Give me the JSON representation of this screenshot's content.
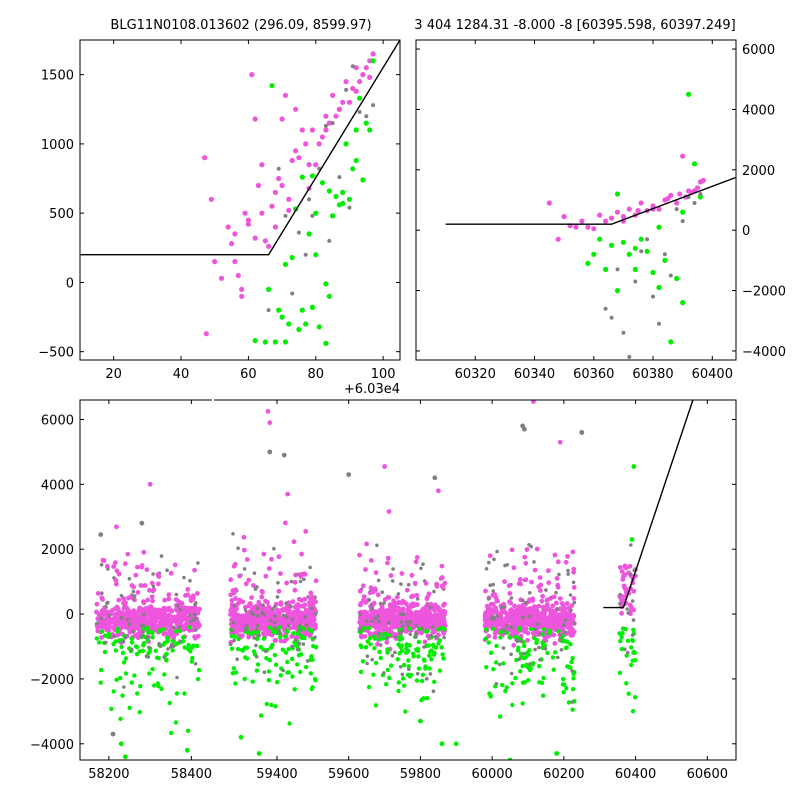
{
  "colors": {
    "magenta": "#ee55dd",
    "green": "#00ee00",
    "gray": "#808080",
    "line": "#000000"
  },
  "chart_data": [
    {
      "type": "scatter",
      "title": "BLG11N0108.013602 (296.09, 8599.97)",
      "x_offset_label": "+6.03e4",
      "xlim": [
        10,
        105
      ],
      "ylim": [
        -560,
        1750
      ],
      "xticks": [
        20,
        40,
        60,
        80,
        100
      ],
      "yticks": [
        -500,
        0,
        500,
        1000,
        1500
      ],
      "grid": false,
      "model_line": {
        "x": [
          10,
          66,
          105
        ],
        "y": [
          200,
          200,
          1750
        ]
      },
      "series": [
        {
          "color": "magenta",
          "x": [
            47,
            47.5,
            49,
            50,
            52,
            54,
            55,
            56,
            57,
            58,
            59,
            60,
            61,
            62,
            63,
            64,
            65,
            66,
            67,
            68,
            69,
            70,
            71,
            72,
            73,
            74,
            75,
            76,
            77,
            78,
            79,
            80,
            81,
            82,
            83,
            84,
            85,
            86,
            87,
            88,
            89,
            90,
            91,
            92,
            93,
            94,
            95,
            96,
            97,
            60,
            62,
            68,
            72,
            56,
            58,
            64,
            70,
            74,
            78,
            83,
            87,
            92,
            96
          ],
          "y": [
            900,
            -370,
            600,
            150,
            30,
            400,
            280,
            350,
            50,
            -100,
            500,
            420,
            1500,
            1180,
            700,
            850,
            300,
            260,
            550,
            650,
            750,
            1180,
            1350,
            520,
            880,
            1250,
            900,
            1100,
            1000,
            680,
            1100,
            850,
            1000,
            1050,
            1200,
            1150,
            1350,
            1200,
            1250,
            1300,
            1450,
            1300,
            1400,
            1550,
            1450,
            1500,
            1550,
            1600,
            1650,
            450,
            320,
            400,
            600,
            150,
            -50,
            500,
            700,
            950,
            850,
            1100,
            1250,
            1380,
            1480
          ]
        },
        {
          "color": "green",
          "x": [
            62,
            65,
            67,
            68,
            69,
            70,
            71,
            72,
            73,
            74,
            75,
            76,
            77,
            78,
            79,
            80,
            81,
            82,
            83,
            84,
            85,
            86,
            87,
            88,
            89,
            90,
            91,
            92,
            93,
            94,
            95,
            96,
            97,
            76,
            80,
            84,
            88,
            92,
            66,
            71,
            79,
            83
          ],
          "y": [
            -420,
            -430,
            1420,
            -430,
            -200,
            -250,
            -430,
            -300,
            180,
            530,
            -340,
            760,
            -300,
            350,
            770,
            500,
            -320,
            720,
            -440,
            660,
            480,
            620,
            560,
            570,
            1000,
            600,
            820,
            1100,
            1330,
            740,
            1150,
            1100,
            1600,
            -200,
            200,
            -100,
            650,
            880,
            -50,
            130,
            -180,
            -10
          ]
        },
        {
          "color": "gray",
          "x": [
            66,
            69,
            71,
            73,
            75,
            77,
            79,
            81,
            83,
            85,
            87,
            89,
            91,
            93,
            95,
            97,
            78,
            84,
            90
          ],
          "y": [
            -200,
            820,
            480,
            -80,
            360,
            200,
            480,
            820,
            1130,
            1150,
            760,
            1390,
            1560,
            1230,
            1200,
            1280,
            600,
            300,
            540
          ]
        }
      ]
    },
    {
      "type": "scatter",
      "title": "3 404 1284.31 -8.000 -8 [60395.598, 60397.249]",
      "xlim": [
        60300,
        60408
      ],
      "ylim": [
        -4300,
        6300
      ],
      "xticks": [
        60320,
        60340,
        60360,
        60380,
        60400
      ],
      "yticks": [
        -4000,
        -2000,
        0,
        2000,
        4000,
        6000
      ],
      "yaxis_side": "right",
      "grid": false,
      "model_line": {
        "x": [
          60310,
          60366,
          60408
        ],
        "y": [
          200,
          200,
          1750
        ]
      },
      "series": [
        {
          "color": "magenta",
          "x": [
            60345,
            60348,
            60350,
            60352,
            60354,
            60356,
            60358,
            60360,
            60362,
            60364,
            60366,
            60368,
            60370,
            60372,
            60374,
            60376,
            60378,
            60380,
            60382,
            60384,
            60386,
            60388,
            60390,
            60392,
            60394,
            60396,
            60389,
            60391,
            60393,
            60395,
            60397,
            60370,
            60375,
            60380,
            60385
          ],
          "y": [
            900,
            -300,
            450,
            150,
            100,
            300,
            100,
            50,
            500,
            300,
            400,
            600,
            450,
            700,
            500,
            900,
            650,
            800,
            700,
            1000,
            1150,
            900,
            2450,
            1300,
            1300,
            1600,
            1200,
            1100,
            1250,
            1400,
            1650,
            300,
            650,
            700,
            1050
          ]
        },
        {
          "color": "green",
          "x": [
            60358,
            60360,
            60362,
            60364,
            60366,
            60368,
            60370,
            60372,
            60374,
            60376,
            60378,
            60380,
            60382,
            60384,
            60386,
            60388,
            60390,
            60392,
            60394,
            60396,
            60368,
            60374,
            60382,
            60390
          ],
          "y": [
            -1100,
            -800,
            -300,
            -1300,
            -500,
            1200,
            -400,
            -800,
            -1300,
            -300,
            -700,
            -1400,
            100,
            -1000,
            -3700,
            -1600,
            -2400,
            4500,
            2200,
            1100,
            -2000,
            -600,
            -1900,
            600
          ]
        },
        {
          "color": "gray",
          "x": [
            60364,
            60366,
            60368,
            60370,
            60372,
            60374,
            60376,
            60378,
            60380,
            60382,
            60384,
            60386,
            60388,
            60390,
            60392,
            60394,
            60396
          ],
          "y": [
            -2600,
            -2900,
            -1300,
            -3400,
            -4200,
            -1700,
            -700,
            -300,
            -2200,
            -3100,
            -800,
            -1500,
            700,
            300,
            1100,
            900,
            1200
          ]
        }
      ]
    },
    {
      "type": "scatter",
      "title": "",
      "xlim": [
        58130,
        60680
      ],
      "ylim": [
        -4500,
        6600
      ],
      "xticks": [
        58200,
        58400,
        59400,
        59600,
        59800,
        60000,
        60200,
        60400,
        60600
      ],
      "yticks": [
        -4000,
        -2000,
        0,
        2000,
        4000,
        6000
      ],
      "grid": false,
      "model_line": {
        "x": [
          60310,
          60366,
          60560
        ],
        "y": [
          200,
          200,
          6600
        ]
      },
      "seasons": [
        [
          58170,
          58420
        ],
        [
          59270,
          59510
        ],
        [
          59630,
          59870
        ],
        [
          59980,
          60230
        ],
        [
          60355,
          60400
        ]
      ],
      "outliers": [
        {
          "color": "magenta",
          "x": [
            59375,
            59380,
            60115,
            60250,
            58300,
            59430,
            59700,
            60190,
            59480,
            59850
          ],
          "y": [
            6250,
            5900,
            6550,
            5600,
            4000,
            3700,
            4550,
            5300,
            2550,
            3800
          ]
        },
        {
          "color": "green",
          "x": [
            58240,
            58390,
            59300,
            59350,
            59800,
            59860,
            60050,
            60180,
            60395,
            60390,
            59900,
            58230
          ],
          "y": [
            -4400,
            -4200,
            -3800,
            -4300,
            -3300,
            -4000,
            -4500,
            -4300,
            4550,
            2300,
            -4000,
            -4000
          ]
        },
        {
          "color": "gray",
          "x": [
            58180,
            58280,
            59380,
            59420,
            59600,
            59840,
            60085,
            60090,
            60250,
            58210
          ],
          "y": [
            2450,
            2800,
            5000,
            4900,
            4300,
            4200,
            5800,
            5700,
            5600,
            -3700
          ]
        }
      ]
    }
  ]
}
